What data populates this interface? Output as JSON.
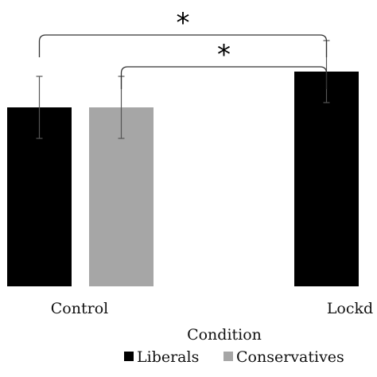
{
  "chart_data": {
    "type": "bar",
    "categories": [
      "Control",
      "Lockd"
    ],
    "xlabel": "Condition",
    "series": [
      {
        "name": "Liberals",
        "color": "#000000",
        "values": [
          3.0,
          3.6
        ],
        "errors": [
          0.52,
          0.52
        ]
      },
      {
        "name": "Conservatives",
        "color": "#a6a6a6",
        "values": [
          3.0,
          null
        ],
        "errors": [
          0.52,
          null
        ]
      }
    ],
    "ylim": [
      0,
      4.8
    ],
    "grid": false,
    "legend": "bottom",
    "significance": [
      {
        "from": "Control / Liberals",
        "to": "Lockd / Liberals",
        "label": "*"
      },
      {
        "from": "Control / Conservatives",
        "to": "Lockd / Liberals",
        "label": "*"
      }
    ]
  }
}
